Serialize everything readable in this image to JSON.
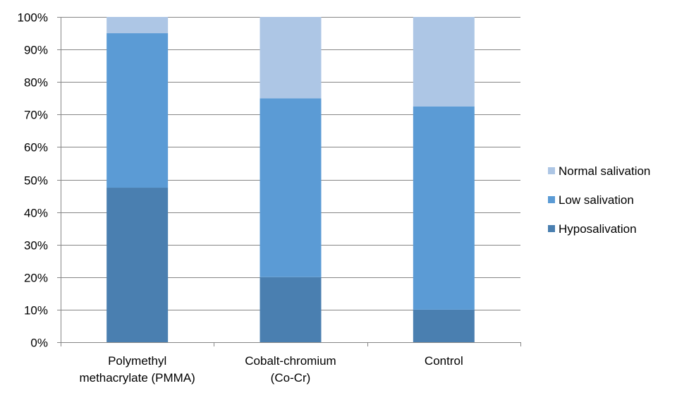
{
  "chart_data": {
    "type": "bar",
    "stacked": true,
    "percent": true,
    "title": "",
    "xlabel": "",
    "ylabel": "",
    "ylim": [
      0,
      100
    ],
    "yticks": [
      "0%",
      "10%",
      "20%",
      "30%",
      "40%",
      "50%",
      "60%",
      "70%",
      "80%",
      "90%",
      "100%"
    ],
    "grid": true,
    "legend_position": "right",
    "categories": [
      [
        "Polymethyl",
        "methacrylate (PMMA)"
      ],
      [
        "Cobalt-chromium",
        "(Co-Cr)"
      ],
      [
        "Control"
      ]
    ],
    "series": [
      {
        "name": "Hyposalivation",
        "color": "#4a7fb0",
        "values": [
          47.5,
          20,
          10
        ]
      },
      {
        "name": "Low salivation",
        "color": "#5b9bd5",
        "values": [
          47.5,
          55,
          62.5
        ]
      },
      {
        "name": "Normal salivation",
        "color": "#adc6e5",
        "values": [
          5,
          25,
          27.5
        ]
      }
    ],
    "legend_order": [
      "Normal salivation",
      "Low salivation",
      "Hyposalivation"
    ]
  }
}
